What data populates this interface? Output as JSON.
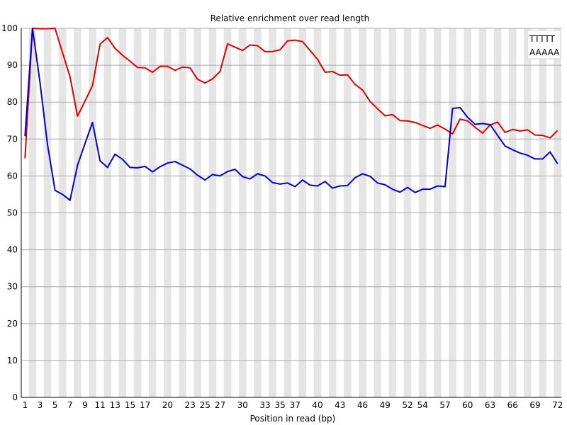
{
  "chart_data": {
    "type": "line",
    "title": "Relative enrichment over read length",
    "xlabel": "Position in read (bp)",
    "ylabel": "",
    "ylim": [
      0,
      100
    ],
    "yticks": [
      0,
      10,
      20,
      30,
      40,
      50,
      60,
      70,
      80,
      90,
      100
    ],
    "x_tick_labels": [
      "1",
      "3",
      "5",
      "7",
      "9",
      "11",
      "13",
      "15",
      "17",
      "20",
      "23",
      "25",
      "27",
      "30",
      "33",
      "35",
      "37",
      "40",
      "43",
      "46",
      "49",
      "52",
      "54",
      "57",
      "60",
      "63",
      "66",
      "69",
      "72"
    ],
    "x_tick_positions": [
      1,
      3,
      5,
      7,
      9,
      11,
      13,
      15,
      17,
      20,
      23,
      25,
      27,
      30,
      33,
      35,
      37,
      40,
      43,
      46,
      49,
      52,
      54,
      57,
      60,
      63,
      66,
      69,
      72
    ],
    "num_bins": 72,
    "grid": true,
    "legend_position": "top-right",
    "series": [
      {
        "name": "TTTTT",
        "color": "#dd0000",
        "values": [
          64.8,
          100,
          99.9,
          99.9,
          100,
          93.4,
          86.9,
          76.2,
          80.3,
          84.5,
          95.7,
          97.5,
          94.6,
          92.7,
          91.1,
          89.4,
          89.3,
          88.1,
          89.7,
          89.7,
          88.6,
          89.5,
          89.3,
          86.2,
          85.2,
          86.3,
          88.3,
          95.8,
          94.9,
          94.0,
          95.5,
          95.3,
          93.7,
          93.7,
          94.2,
          96.6,
          96.8,
          96.4,
          94.0,
          91.6,
          88.1,
          88.3,
          87.3,
          87.4,
          84.8,
          83.3,
          80.2,
          78.2,
          76.3,
          76.6,
          75.0,
          74.9,
          74.5,
          73.7,
          72.9,
          73.8,
          72.7,
          71.4,
          75.4,
          74.9,
          73.2,
          71.6,
          73.8,
          74.6,
          71.8,
          72.6,
          72.2,
          72.5,
          71.1,
          71.0,
          70.3,
          72.3
        ]
      },
      {
        "name": "AAAAA",
        "color": "#0000cc",
        "values": [
          70.8,
          100,
          85.3,
          68.5,
          56.1,
          55.0,
          53.4,
          62.9,
          68.8,
          74.5,
          64.1,
          62.3,
          65.9,
          64.5,
          62.3,
          62.2,
          62.6,
          61.1,
          62.5,
          63.5,
          63.9,
          62.9,
          61.9,
          60.2,
          58.9,
          60.4,
          60.0,
          61.2,
          61.8,
          59.8,
          59.2,
          60.6,
          60.0,
          58.2,
          57.8,
          58.1,
          57.1,
          58.9,
          57.5,
          57.3,
          58.5,
          56.7,
          57.3,
          57.4,
          59.5,
          60.6,
          59.9,
          58.1,
          57.6,
          56.4,
          55.6,
          56.9,
          55.5,
          56.4,
          56.4,
          57.3,
          57.1,
          78.3,
          78.5,
          75.9,
          74.0,
          74.2,
          73.9,
          71.0,
          68.1,
          67.1,
          66.2,
          65.6,
          64.6,
          64.6,
          66.5,
          63.3
        ]
      }
    ]
  }
}
